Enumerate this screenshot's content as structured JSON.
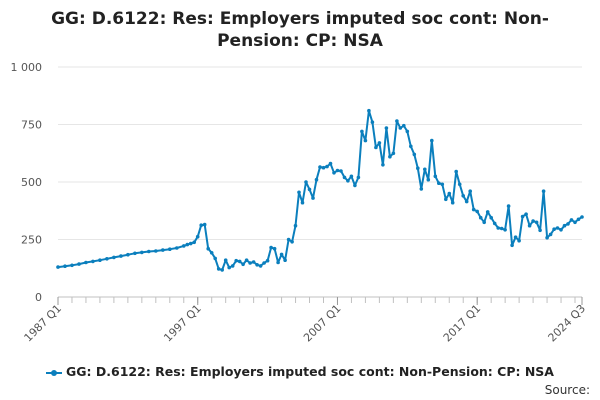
{
  "chart_data": {
    "type": "line",
    "title": "GG: D.6122: Res: Employers imputed soc cont: Non-Pension: CP: NSA",
    "xlabel": "",
    "ylabel": "",
    "ylim": [
      0,
      1000
    ],
    "yticks": [
      0,
      250,
      500,
      750,
      1000
    ],
    "ytick_labels": [
      "0",
      "250",
      "500",
      "750",
      "1 000"
    ],
    "xlim": [
      1987.0,
      2024.5
    ],
    "xticks": [
      1987.0,
      1997.0,
      2007.0,
      2017.0,
      2024.5
    ],
    "xtick_labels": [
      "1987 Q1",
      "1997 Q1",
      "2007 Q1",
      "2017 Q1",
      "2024 Q3"
    ],
    "grid": "horizontal",
    "legend_position": "bottom",
    "color": "#0b7fbd",
    "series": [
      {
        "name": "GG: D.6122: Res: Employers imputed soc cont: Non-Pension: CP: NSA",
        "points": [
          [
            1987.0,
            130
          ],
          [
            1987.5,
            134
          ],
          [
            1988.0,
            138
          ],
          [
            1988.5,
            143
          ],
          [
            1989.0,
            150
          ],
          [
            1989.5,
            155
          ],
          [
            1990.0,
            160
          ],
          [
            1990.5,
            166
          ],
          [
            1991.0,
            172
          ],
          [
            1991.5,
            178
          ],
          [
            1992.0,
            184
          ],
          [
            1992.5,
            190
          ],
          [
            1993.0,
            194
          ],
          [
            1993.5,
            198
          ],
          [
            1994.0,
            200
          ],
          [
            1994.5,
            204
          ],
          [
            1995.0,
            208
          ],
          [
            1995.5,
            213
          ],
          [
            1996.0,
            222
          ],
          [
            1996.25,
            228
          ],
          [
            1996.5,
            232
          ],
          [
            1996.75,
            238
          ],
          [
            1997.0,
            262
          ],
          [
            1997.25,
            312
          ],
          [
            1997.5,
            315
          ],
          [
            1997.75,
            210
          ],
          [
            1998.0,
            192
          ],
          [
            1998.25,
            168
          ],
          [
            1998.5,
            122
          ],
          [
            1998.75,
            118
          ],
          [
            1999.0,
            160
          ],
          [
            1999.25,
            128
          ],
          [
            1999.5,
            135
          ],
          [
            1999.75,
            158
          ],
          [
            2000.0,
            155
          ],
          [
            2000.25,
            142
          ],
          [
            2000.5,
            160
          ],
          [
            2000.75,
            148
          ],
          [
            2001.0,
            152
          ],
          [
            2001.25,
            140
          ],
          [
            2001.5,
            135
          ],
          [
            2001.75,
            148
          ],
          [
            2002.0,
            158
          ],
          [
            2002.25,
            215
          ],
          [
            2002.5,
            210
          ],
          [
            2002.75,
            150
          ],
          [
            2003.0,
            185
          ],
          [
            2003.25,
            160
          ],
          [
            2003.5,
            250
          ],
          [
            2003.75,
            240
          ],
          [
            2004.0,
            310
          ],
          [
            2004.25,
            455
          ],
          [
            2004.5,
            410
          ],
          [
            2004.75,
            500
          ],
          [
            2005.0,
            468
          ],
          [
            2005.25,
            430
          ],
          [
            2005.5,
            510
          ],
          [
            2005.75,
            565
          ],
          [
            2006.0,
            562
          ],
          [
            2006.25,
            567
          ],
          [
            2006.5,
            580
          ],
          [
            2006.75,
            540
          ],
          [
            2007.0,
            550
          ],
          [
            2007.25,
            548
          ],
          [
            2007.5,
            520
          ],
          [
            2007.75,
            505
          ],
          [
            2008.0,
            525
          ],
          [
            2008.25,
            485
          ],
          [
            2008.5,
            520
          ],
          [
            2008.75,
            720
          ],
          [
            2009.0,
            680
          ],
          [
            2009.25,
            810
          ],
          [
            2009.5,
            760
          ],
          [
            2009.75,
            650
          ],
          [
            2010.0,
            670
          ],
          [
            2010.25,
            575
          ],
          [
            2010.5,
            735
          ],
          [
            2010.75,
            610
          ],
          [
            2011.0,
            625
          ],
          [
            2011.25,
            765
          ],
          [
            2011.5,
            735
          ],
          [
            2011.75,
            745
          ],
          [
            2012.0,
            720
          ],
          [
            2012.25,
            655
          ],
          [
            2012.5,
            620
          ],
          [
            2012.75,
            560
          ],
          [
            2013.0,
            470
          ],
          [
            2013.25,
            555
          ],
          [
            2013.5,
            510
          ],
          [
            2013.75,
            680
          ],
          [
            2014.0,
            525
          ],
          [
            2014.25,
            495
          ],
          [
            2014.5,
            490
          ],
          [
            2014.75,
            425
          ],
          [
            2015.0,
            450
          ],
          [
            2015.25,
            410
          ],
          [
            2015.5,
            545
          ],
          [
            2015.75,
            490
          ],
          [
            2016.0,
            440
          ],
          [
            2016.25,
            415
          ],
          [
            2016.5,
            460
          ],
          [
            2016.75,
            380
          ],
          [
            2017.0,
            372
          ],
          [
            2017.25,
            345
          ],
          [
            2017.5,
            325
          ],
          [
            2017.75,
            370
          ],
          [
            2018.0,
            345
          ],
          [
            2018.25,
            320
          ],
          [
            2018.5,
            300
          ],
          [
            2018.75,
            298
          ],
          [
            2019.0,
            292
          ],
          [
            2019.25,
            395
          ],
          [
            2019.5,
            225
          ],
          [
            2019.75,
            260
          ],
          [
            2020.0,
            245
          ],
          [
            2020.25,
            350
          ],
          [
            2020.5,
            360
          ],
          [
            2020.75,
            310
          ],
          [
            2021.0,
            330
          ],
          [
            2021.25,
            325
          ],
          [
            2021.5,
            290
          ],
          [
            2021.75,
            460
          ],
          [
            2022.0,
            258
          ],
          [
            2022.25,
            272
          ],
          [
            2022.5,
            295
          ],
          [
            2022.75,
            300
          ],
          [
            2023.0,
            292
          ],
          [
            2023.25,
            310
          ],
          [
            2023.5,
            318
          ],
          [
            2023.75,
            335
          ],
          [
            2024.0,
            325
          ],
          [
            2024.25,
            338
          ],
          [
            2024.5,
            348
          ]
        ]
      }
    ]
  },
  "source_label": "Source:"
}
